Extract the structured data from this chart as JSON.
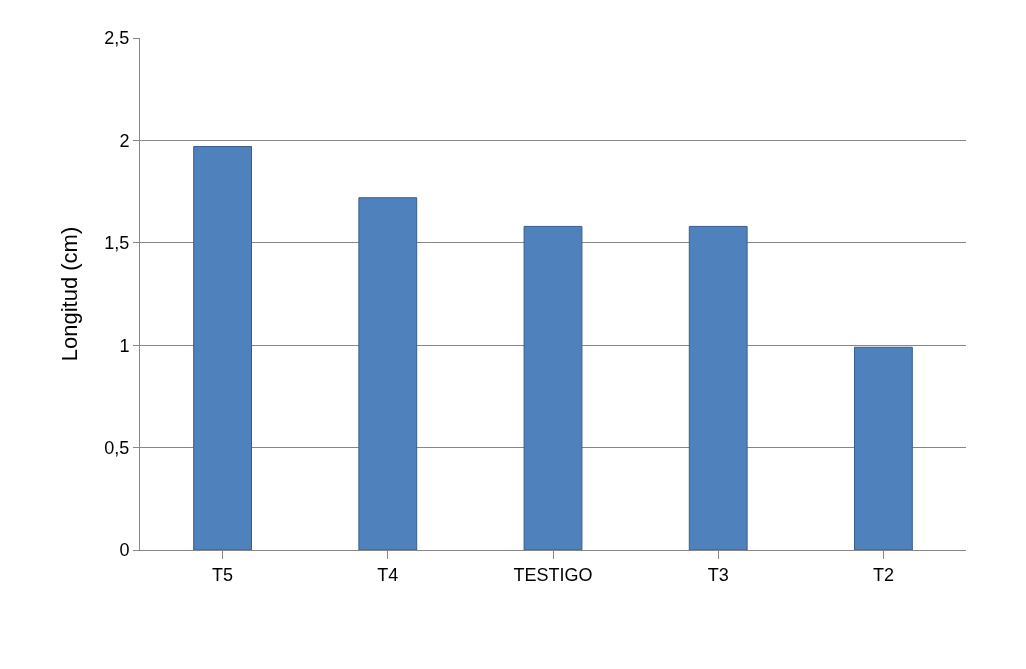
{
  "chart_data": {
    "type": "bar",
    "ylabel": "Longitud (cm)",
    "categories": [
      "T5",
      "T4",
      "TESTIGO",
      "T3",
      "T2"
    ],
    "values": [
      1.97,
      1.72,
      1.58,
      1.58,
      0.99
    ],
    "color": "#4f81bd",
    "ylim": [
      0,
      2.5
    ],
    "yticks": [
      {
        "value": 0,
        "label": "0"
      },
      {
        "value": 0.5,
        "label": "0,5"
      },
      {
        "value": 1,
        "label": "1"
      },
      {
        "value": 1.5,
        "label": "1,5"
      },
      {
        "value": 2,
        "label": "2"
      },
      {
        "value": 2.5,
        "label": "2,5"
      }
    ],
    "grid": "y"
  }
}
